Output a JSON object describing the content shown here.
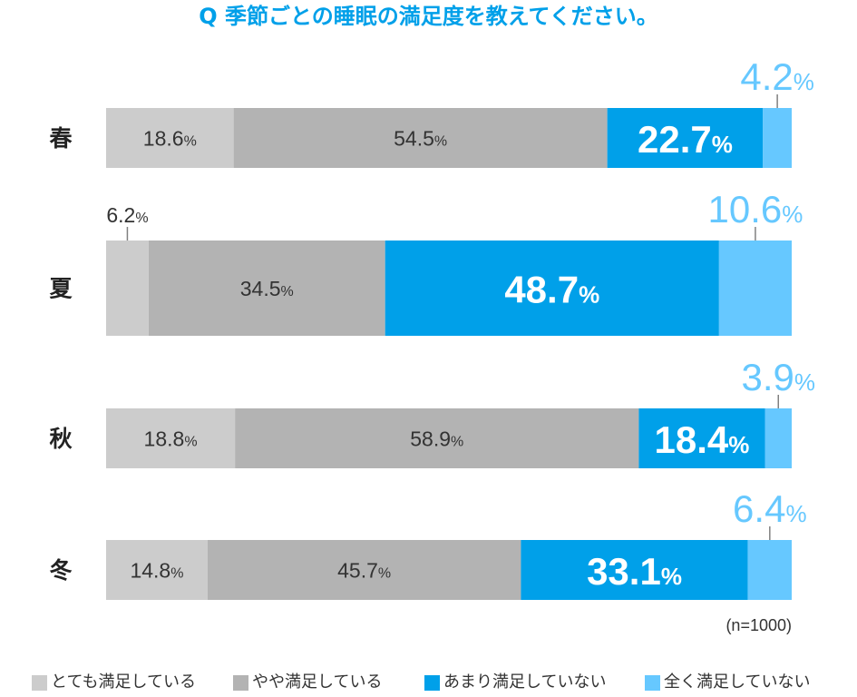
{
  "chart_data": {
    "type": "bar",
    "orientation": "horizontal",
    "stacked": true,
    "title": "Q 季節ごとの睡眠の満足度を教えてください。",
    "categories": [
      "春",
      "夏",
      "秋",
      "冬"
    ],
    "series": [
      {
        "name": "とても満足している",
        "values": [
          18.6,
          6.2,
          18.8,
          14.8
        ],
        "color": "#cccccc"
      },
      {
        "name": "やや満足している",
        "values": [
          54.5,
          34.5,
          58.9,
          45.7
        ],
        "color": "#b3b3b3"
      },
      {
        "name": "あまり満足していない",
        "values": [
          22.7,
          48.7,
          18.4,
          33.1
        ],
        "color": "#00a0e9"
      },
      {
        "name": "全く満足していない",
        "values": [
          4.2,
          10.6,
          3.9,
          6.4
        ],
        "color": "#66c8ff"
      }
    ],
    "unit": "%",
    "xlim": [
      0,
      100
    ],
    "grid": false,
    "legend": "bottom",
    "note": "(n=1000)"
  },
  "colors": {
    "accent": "#00a0e9",
    "text": "#333333"
  }
}
